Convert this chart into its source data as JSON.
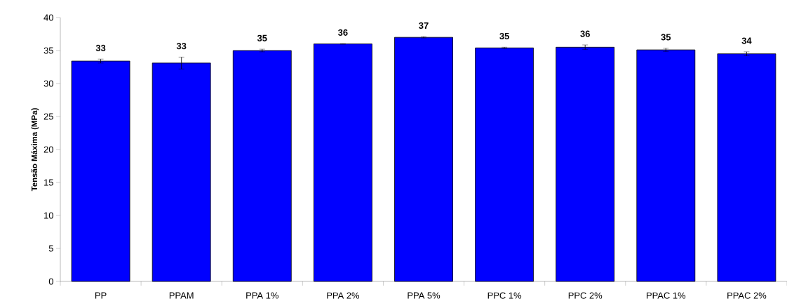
{
  "chart_data": {
    "type": "bar",
    "ylabel": "Tensão Máxima (MPa)",
    "categories": [
      "PP",
      "PPAM",
      "PPA 1%",
      "PPA 2%",
      "PPA 5%",
      "PPC 1%",
      "PPC 2%",
      "PPAC 1%",
      "PPAC 2%"
    ],
    "values": [
      33.4,
      33.1,
      35.0,
      36.0,
      37.0,
      35.4,
      35.5,
      35.1,
      34.5
    ],
    "errors": [
      0.3,
      0.9,
      0.2,
      0.05,
      0.1,
      0.1,
      0.35,
      0.25,
      0.3
    ],
    "value_labels": [
      "33",
      "33",
      "35",
      "36",
      "37",
      "35",
      "36",
      "35",
      "34"
    ],
    "color": "#0000ff",
    "ylim": [
      0,
      40
    ],
    "yticks": [
      0,
      5,
      10,
      15,
      20,
      25,
      30,
      35,
      40
    ],
    "grid": false
  }
}
